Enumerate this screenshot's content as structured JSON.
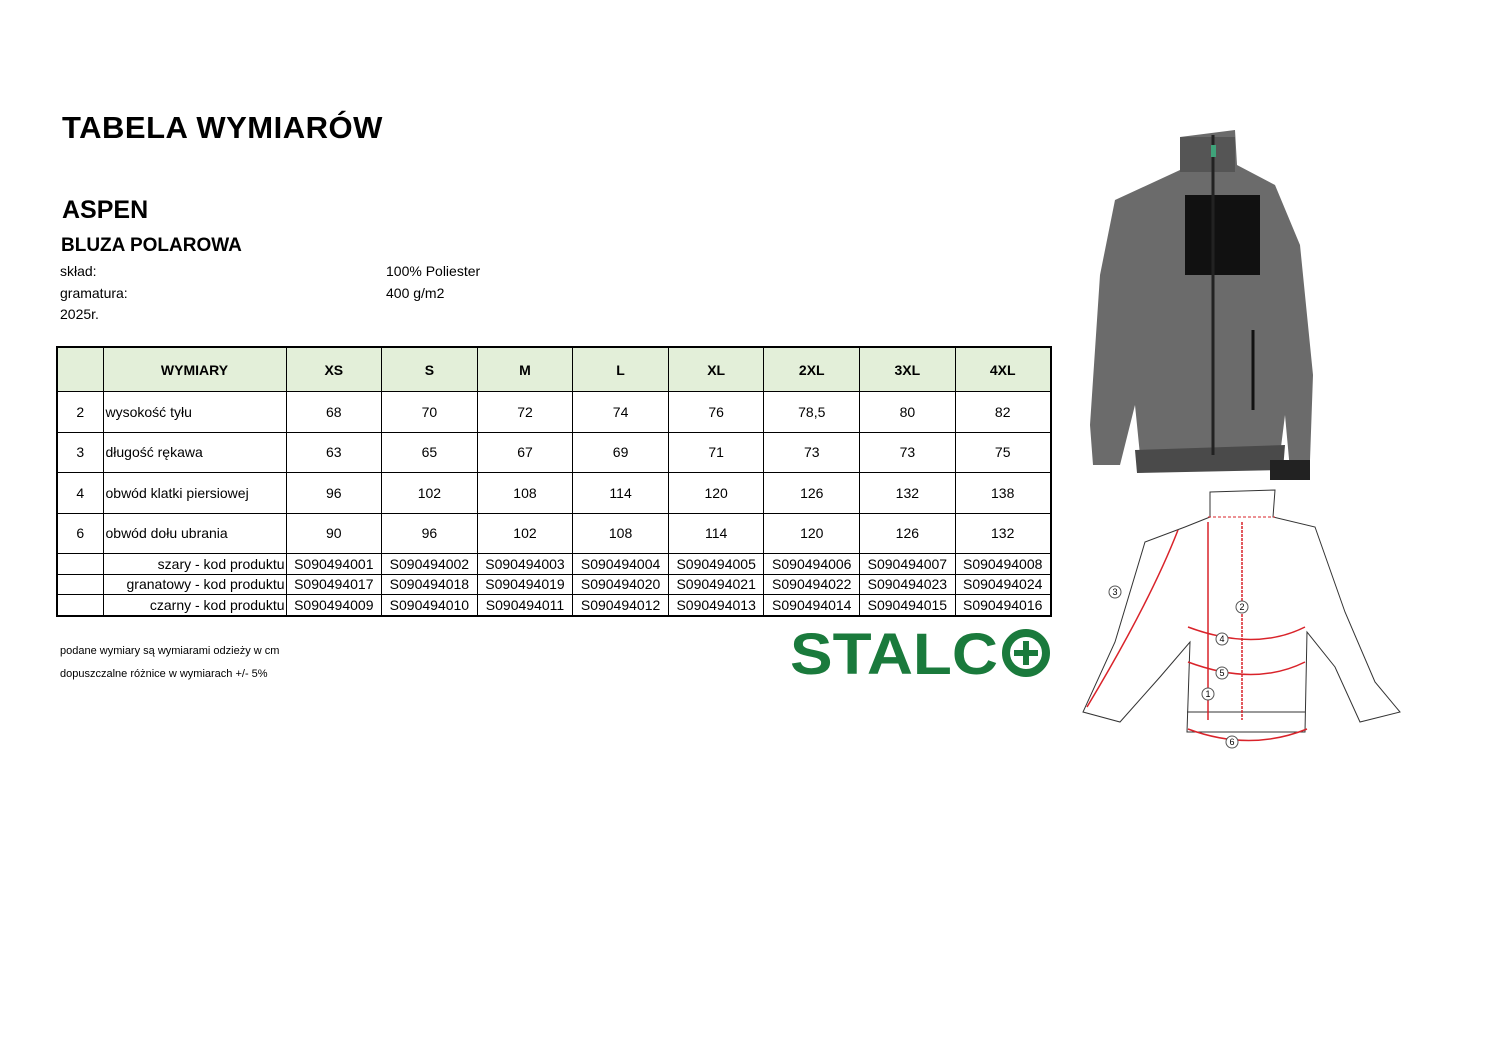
{
  "title": "TABELA WYMIARÓW",
  "product": "ASPEN",
  "subtitle": "BLUZA POLAROWA",
  "meta": [
    {
      "label": "skład:",
      "value": "100% Poliester"
    },
    {
      "label": "gramatura:",
      "value": "400 g/m2"
    },
    {
      "label": "2025r.",
      "value": ""
    }
  ],
  "table": {
    "header": "WYMIARY",
    "sizes": [
      "XS",
      "S",
      "M",
      "L",
      "XL",
      "2XL",
      "3XL",
      "4XL"
    ],
    "rows": [
      {
        "no": "2",
        "label": "wysokość tyłu",
        "values": [
          "68",
          "70",
          "72",
          "74",
          "76",
          "78,5",
          "80",
          "82"
        ]
      },
      {
        "no": "3",
        "label": "długość rękawa",
        "values": [
          "63",
          "65",
          "67",
          "69",
          "71",
          "73",
          "73",
          "75"
        ]
      },
      {
        "no": "4",
        "label": "obwód klatki piersiowej",
        "values": [
          "96",
          "102",
          "108",
          "114",
          "120",
          "126",
          "132",
          "138"
        ]
      },
      {
        "no": "6",
        "label": "obwód dołu ubrania",
        "values": [
          "90",
          "96",
          "102",
          "108",
          "114",
          "120",
          "126",
          "132"
        ]
      }
    ],
    "codes": [
      {
        "label": "szary - kod produktu",
        "values": [
          "S090494001",
          "S090494002",
          "S090494003",
          "S090494004",
          "S090494005",
          "S090494006",
          "S090494007",
          "S090494008"
        ]
      },
      {
        "label": "granatowy - kod produktu",
        "values": [
          "S090494017",
          "S090494018",
          "S090494019",
          "S090494020",
          "S090494021",
          "S090494022",
          "S090494023",
          "S090494024"
        ]
      },
      {
        "label": "czarny - kod produktu",
        "values": [
          "S090494009",
          "S090494010",
          "S090494011",
          "S090494012",
          "S090494013",
          "S090494014",
          "S090494015",
          "S090494016"
        ]
      }
    ]
  },
  "notes": [
    "podane wymiary są wymiarami odzieży w cm",
    "dopuszczalne różnice w wymiarach +/- 5%"
  ],
  "logo": {
    "text": "STALCO",
    "color": "#1a7a3c"
  },
  "diagram_labels": [
    "1",
    "2",
    "3",
    "4",
    "5",
    "6"
  ],
  "colors": {
    "header_bg": "#e3efd9",
    "arrow": "#d9232a"
  }
}
